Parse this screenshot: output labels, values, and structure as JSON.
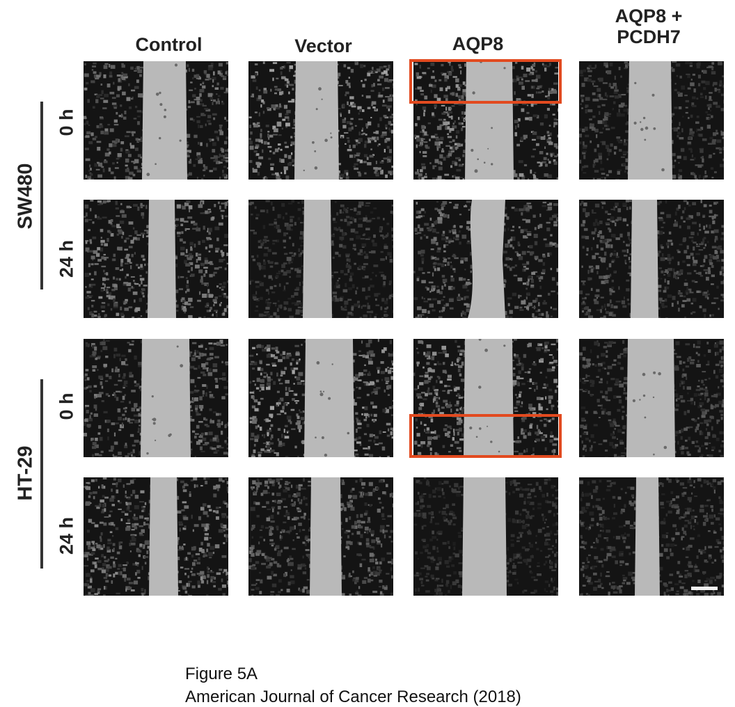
{
  "figure": {
    "columns": [
      {
        "label": "Control"
      },
      {
        "label": "Vector"
      },
      {
        "label": "AQP8"
      },
      {
        "label_line1": "AQP8 +",
        "label_line2": "PCDH7"
      }
    ],
    "groups": [
      {
        "name": "SW480",
        "times": [
          "0 h",
          "24 h"
        ]
      },
      {
        "name": "HT-29",
        "times": [
          "0 h",
          "24 h"
        ]
      }
    ],
    "panel_tones": {
      "gap_color": "#b9b9b9",
      "cell_dark": "#141414",
      "cell_light": "#d8d8d8"
    },
    "highlight_color": "#e24a1f"
  },
  "caption": {
    "line1": "Figure 5A",
    "line2": "American Journal of Cancer Research (2018)"
  }
}
